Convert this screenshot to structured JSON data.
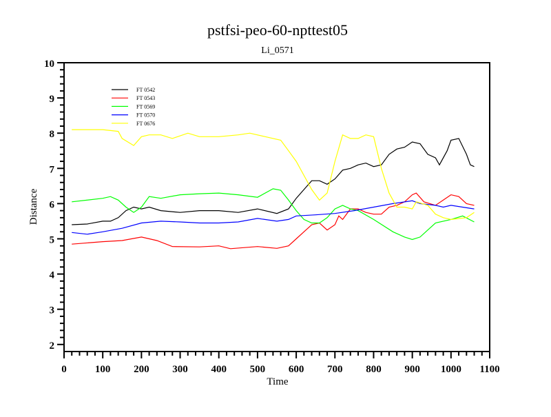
{
  "chart_data": {
    "type": "line",
    "title": "pstfsi-peo-60-npttest05",
    "subtitle": "Li_0571",
    "xlabel": "Time",
    "ylabel": "Distance",
    "xlim": [
      0,
      1100
    ],
    "ylim": [
      1.8,
      10
    ],
    "xticks": [
      0,
      100,
      200,
      300,
      400,
      500,
      600,
      700,
      800,
      900,
      1000,
      1100
    ],
    "yticks": [
      2,
      3,
      4,
      5,
      6,
      7,
      8,
      9,
      10
    ],
    "grid": false,
    "legend_position": "top-left",
    "series": [
      {
        "name": "FT 0542",
        "color": "#000000",
        "x": [
          20,
          60,
          100,
          120,
          140,
          160,
          180,
          200,
          220,
          250,
          300,
          350,
          400,
          450,
          500,
          550,
          580,
          600,
          620,
          640,
          660,
          680,
          700,
          720,
          740,
          760,
          780,
          800,
          820,
          840,
          860,
          880,
          900,
          920,
          940,
          960,
          970,
          990,
          1000,
          1020,
          1040,
          1050,
          1060
        ],
        "y": [
          5.4,
          5.42,
          5.5,
          5.5,
          5.6,
          5.8,
          5.9,
          5.85,
          5.9,
          5.8,
          5.75,
          5.8,
          5.8,
          5.75,
          5.85,
          5.72,
          5.85,
          6.15,
          6.4,
          6.65,
          6.65,
          6.55,
          6.7,
          6.95,
          7.0,
          7.1,
          7.15,
          7.05,
          7.1,
          7.4,
          7.55,
          7.6,
          7.75,
          7.7,
          7.4,
          7.3,
          7.1,
          7.5,
          7.8,
          7.85,
          7.4,
          7.1,
          7.05
        ]
      },
      {
        "name": "FT 0543",
        "color": "#ff0000",
        "x": [
          20,
          100,
          150,
          200,
          240,
          280,
          350,
          400,
          430,
          500,
          550,
          580,
          600,
          620,
          640,
          660,
          680,
          700,
          710,
          720,
          740,
          760,
          780,
          800,
          820,
          840,
          860,
          880,
          900,
          910,
          930,
          960,
          980,
          1000,
          1020,
          1040,
          1060
        ],
        "y": [
          4.85,
          4.92,
          4.95,
          5.05,
          4.95,
          4.78,
          4.77,
          4.8,
          4.72,
          4.78,
          4.73,
          4.8,
          5.0,
          5.2,
          5.4,
          5.45,
          5.25,
          5.4,
          5.65,
          5.55,
          5.85,
          5.85,
          5.75,
          5.7,
          5.7,
          5.9,
          5.95,
          6.05,
          6.25,
          6.3,
          6.05,
          5.95,
          6.1,
          6.25,
          6.2,
          6.0,
          5.95
        ]
      },
      {
        "name": "FT 0569",
        "color": "#00ff00",
        "x": [
          20,
          100,
          120,
          140,
          160,
          180,
          200,
          220,
          250,
          300,
          350,
          400,
          450,
          500,
          540,
          560,
          580,
          600,
          620,
          640,
          660,
          680,
          700,
          720,
          740,
          760,
          800,
          850,
          880,
          900,
          920,
          940,
          960,
          1000,
          1030,
          1060
        ],
        "y": [
          6.05,
          6.15,
          6.2,
          6.1,
          5.9,
          5.75,
          5.9,
          6.2,
          6.15,
          6.25,
          6.28,
          6.3,
          6.25,
          6.18,
          6.42,
          6.38,
          6.1,
          5.8,
          5.55,
          5.45,
          5.45,
          5.6,
          5.85,
          5.95,
          5.85,
          5.8,
          5.55,
          5.2,
          5.05,
          4.98,
          5.05,
          5.25,
          5.45,
          5.55,
          5.65,
          5.48
        ]
      },
      {
        "name": "FT 0570",
        "color": "#0000ff",
        "x": [
          20,
          60,
          100,
          150,
          200,
          250,
          300,
          350,
          400,
          450,
          500,
          550,
          580,
          600,
          650,
          700,
          750,
          800,
          850,
          900,
          920,
          960,
          980,
          1000,
          1060
        ],
        "y": [
          5.18,
          5.13,
          5.2,
          5.3,
          5.45,
          5.5,
          5.48,
          5.45,
          5.45,
          5.48,
          5.58,
          5.5,
          5.55,
          5.65,
          5.68,
          5.72,
          5.8,
          5.9,
          6.0,
          6.08,
          6.0,
          5.95,
          5.9,
          5.95,
          5.85
        ]
      },
      {
        "name": "FT 0676",
        "color": "#ffff00",
        "x": [
          20,
          100,
          140,
          150,
          180,
          200,
          220,
          250,
          280,
          320,
          350,
          400,
          450,
          480,
          520,
          560,
          580,
          600,
          620,
          640,
          660,
          680,
          700,
          720,
          740,
          760,
          780,
          800,
          820,
          840,
          860,
          880,
          900,
          910,
          940,
          960,
          980,
          1000,
          1040,
          1060
        ],
        "y": [
          8.1,
          8.1,
          8.05,
          7.85,
          7.65,
          7.9,
          7.95,
          7.95,
          7.85,
          8.0,
          7.9,
          7.9,
          7.95,
          8.0,
          7.9,
          7.8,
          7.5,
          7.2,
          6.8,
          6.4,
          6.1,
          6.3,
          7.2,
          7.95,
          7.85,
          7.85,
          7.95,
          7.9,
          7.0,
          6.3,
          5.9,
          5.9,
          5.85,
          6.05,
          5.95,
          5.7,
          5.6,
          5.55,
          5.6,
          5.75
        ]
      }
    ]
  }
}
